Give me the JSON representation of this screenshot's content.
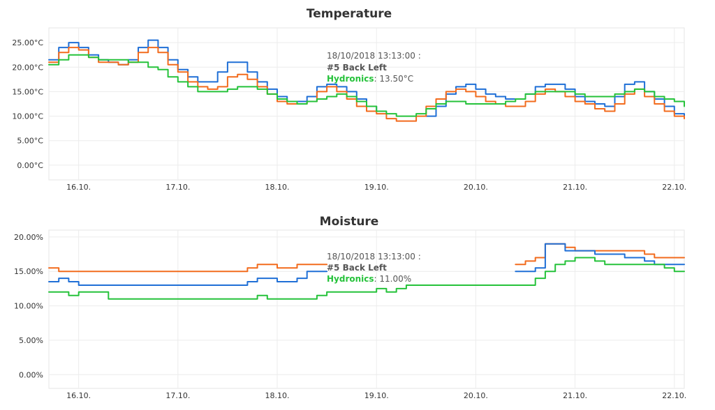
{
  "chart_data": [
    {
      "type": "line",
      "title": "Temperature",
      "xlabel": "",
      "ylabel": "",
      "x_ticks": [
        "16.10.",
        "17.10.",
        "18.10.",
        "19.10.",
        "20.10.",
        "21.10.",
        "22.10."
      ],
      "y_ticks": [
        "0.00°C",
        "5.00°C",
        "10.00°C",
        "15.00°C",
        "20.00°C",
        "25.00°C"
      ],
      "xlim_days": [
        15.8,
        22.2
      ],
      "ylim": [
        -3,
        28
      ],
      "grid": true,
      "x": [
        15.8,
        15.9,
        16.0,
        16.1,
        16.2,
        16.3,
        16.4,
        16.5,
        16.6,
        16.7,
        16.8,
        16.9,
        17.0,
        17.1,
        17.2,
        17.3,
        17.4,
        17.5,
        17.6,
        17.7,
        17.8,
        17.9,
        18.0,
        18.1,
        18.2,
        18.3,
        18.4,
        18.5,
        18.6,
        18.7,
        18.8,
        18.9,
        19.0,
        19.1,
        19.2,
        19.3,
        19.4,
        19.5,
        19.6,
        19.7,
        19.8,
        19.9,
        20.0,
        20.1,
        20.2,
        20.3,
        20.4,
        20.5,
        20.6,
        20.7,
        20.8,
        20.9,
        21.0,
        21.1,
        21.2,
        21.3,
        21.4,
        21.5,
        21.6,
        21.7,
        21.8,
        21.9,
        22.0,
        22.1,
        22.2
      ],
      "series": [
        {
          "color": "#1f6fd6",
          "values": [
            21.5,
            24,
            25,
            24,
            22.5,
            21.5,
            21,
            20.5,
            21.5,
            24,
            25.5,
            24,
            21.5,
            19.5,
            18,
            17,
            17,
            19,
            21,
            21,
            19,
            17,
            15.5,
            14,
            13,
            13,
            14,
            16,
            16.5,
            16,
            15,
            13.5,
            12,
            11,
            null,
            null,
            null,
            null,
            10,
            12,
            14.5,
            16,
            16.5,
            15.5,
            14.5,
            14,
            13.5,
            13.5,
            14.5,
            16,
            16.5,
            16.5,
            15.5,
            14,
            13,
            12.5,
            12,
            14,
            16.5,
            17,
            15,
            13.5,
            12,
            10.5,
            10
          ]
        },
        {
          "color": "#f26b1d",
          "values": [
            21,
            23,
            24,
            23.5,
            22,
            21,
            21,
            20.5,
            21,
            23,
            24,
            23,
            20.5,
            19,
            17,
            16,
            15.5,
            16,
            18,
            18.5,
            17.5,
            16,
            14.5,
            13,
            12.5,
            12.5,
            13,
            15,
            16,
            15,
            13.5,
            12,
            11,
            10.5,
            9.5,
            9,
            9,
            10,
            12,
            13.5,
            15,
            15.5,
            15,
            14,
            13,
            12.5,
            12,
            12,
            13,
            14.5,
            15.5,
            15,
            14,
            13,
            12.5,
            11.5,
            11,
            12.5,
            14.5,
            15.5,
            14,
            12.5,
            11,
            10,
            9.5
          ]
        },
        {
          "color": "#25c23a",
          "values": [
            20.5,
            21.5,
            22.5,
            22.5,
            22,
            21.5,
            21.5,
            21.5,
            21,
            21,
            20,
            19.5,
            18,
            17,
            16,
            15,
            15,
            15,
            15.5,
            16,
            16,
            15.5,
            14.5,
            13.5,
            13,
            12.5,
            13,
            13.5,
            14,
            14.5,
            14,
            13,
            12,
            11,
            10.5,
            10,
            10,
            10.5,
            11.5,
            12.5,
            13,
            13,
            12.5,
            12.5,
            12.5,
            12.5,
            13,
            13.5,
            14.5,
            15,
            15,
            15,
            15,
            14.5,
            14,
            14,
            14,
            14.5,
            15,
            15.5,
            15,
            14,
            13.5,
            13,
            12
          ]
        }
      ],
      "tooltip": {
        "date": "18/10/2018 13:13:00 :",
        "name_line1": "#5 Back Left",
        "name_line2": "Hydronics",
        "value": ": 13.50°C",
        "color": "#25c23a"
      }
    },
    {
      "type": "line",
      "title": "Moisture",
      "xlabel": "",
      "ylabel": "",
      "x_ticks": [
        "16.10.",
        "17.10.",
        "18.10.",
        "19.10.",
        "20.10.",
        "21.10.",
        "22.10."
      ],
      "y_ticks": [
        "0.00%",
        "5.00%",
        "10.00%",
        "15.00%",
        "20.00%"
      ],
      "xlim_days": [
        15.8,
        22.2
      ],
      "ylim": [
        -2,
        21
      ],
      "grid": true,
      "x": [
        15.8,
        15.9,
        16.0,
        16.1,
        16.2,
        16.3,
        16.4,
        16.5,
        16.6,
        16.7,
        16.8,
        16.9,
        17.0,
        17.1,
        17.2,
        17.3,
        17.4,
        17.5,
        17.6,
        17.7,
        17.8,
        17.9,
        18.0,
        18.1,
        18.2,
        18.3,
        18.4,
        18.5,
        18.6,
        18.7,
        18.8,
        18.9,
        19.0,
        19.1,
        19.2,
        19.3,
        19.4,
        19.5,
        19.6,
        19.7,
        19.8,
        19.9,
        20.0,
        20.1,
        20.2,
        20.3,
        20.4,
        20.5,
        20.6,
        20.7,
        20.8,
        20.9,
        21.0,
        21.1,
        21.2,
        21.3,
        21.4,
        21.5,
        21.6,
        21.7,
        21.8,
        21.9,
        22.0,
        22.1,
        22.2
      ],
      "series": [
        {
          "color": "#f26b1d",
          "values": [
            15.5,
            15,
            15,
            15,
            15,
            15,
            15,
            15,
            15,
            15,
            15,
            15,
            15,
            15,
            15,
            15,
            15,
            15,
            15,
            15,
            15.5,
            16,
            16,
            15.5,
            15.5,
            16,
            16,
            16,
            16,
            null,
            null,
            null,
            null,
            null,
            null,
            null,
            null,
            null,
            null,
            null,
            null,
            null,
            null,
            null,
            null,
            null,
            null,
            16,
            16.5,
            17,
            19,
            19,
            18.5,
            18,
            18,
            18,
            18,
            18,
            18,
            18,
            17.5,
            17,
            17,
            17,
            17
          ]
        },
        {
          "color": "#1f6fd6",
          "values": [
            13.5,
            14,
            13.5,
            13,
            13,
            13,
            13,
            13,
            13,
            13,
            13,
            13,
            13,
            13,
            13,
            13,
            13,
            13,
            13,
            13,
            13.5,
            14,
            14,
            13.5,
            13.5,
            14,
            15,
            15,
            15,
            null,
            null,
            null,
            null,
            null,
            null,
            null,
            null,
            null,
            null,
            null,
            null,
            null,
            null,
            null,
            null,
            null,
            null,
            15,
            15,
            15.5,
            19,
            19,
            18,
            18,
            18,
            17.5,
            17.5,
            17.5,
            17,
            17,
            16.5,
            16,
            16,
            16,
            16
          ]
        },
        {
          "color": "#25c23a",
          "values": [
            12,
            12,
            11.5,
            12,
            12,
            12,
            11,
            11,
            11,
            11,
            11,
            11,
            11,
            11,
            11,
            11,
            11,
            11,
            11,
            11,
            11,
            11.5,
            11,
            11,
            11,
            11,
            11,
            11.5,
            12,
            12,
            12,
            12,
            12,
            12.5,
            12,
            12.5,
            13,
            13,
            13,
            13,
            13,
            13,
            13,
            13,
            13,
            13,
            13,
            13,
            13,
            14,
            15,
            16,
            16.5,
            17,
            17,
            16.5,
            16,
            16,
            16,
            16,
            16,
            16,
            15.5,
            15,
            15
          ]
        }
      ],
      "tooltip": {
        "date": "18/10/2018 13:13:00 :",
        "name_line1": "#5 Back Left",
        "name_line2": "Hydronics",
        "value": ": 11.00%",
        "color": "#25c23a"
      }
    }
  ]
}
